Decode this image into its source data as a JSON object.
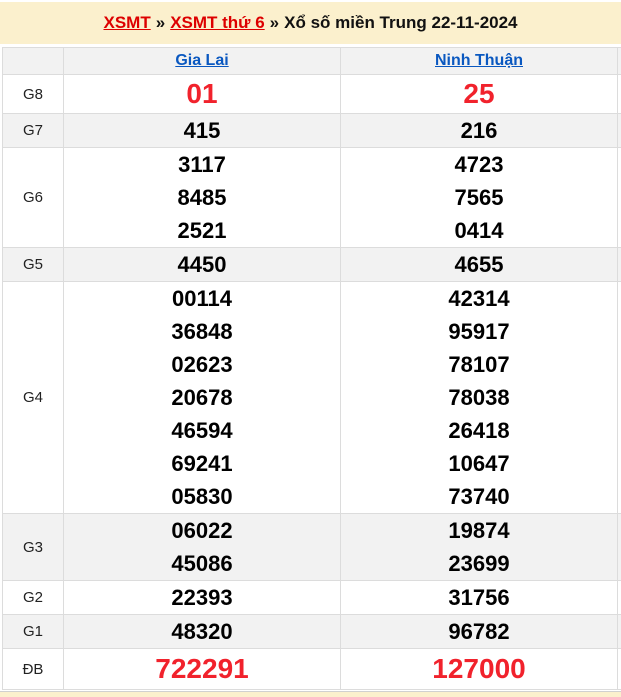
{
  "breadcrumb": {
    "link1": "XSMT",
    "sep": "»",
    "link2": "XSMT thứ 6",
    "current": "Xổ số miền Trung 22-11-2024"
  },
  "table": {
    "columns": [
      "Gia Lai",
      "Ninh Thuận"
    ],
    "rows": [
      {
        "label": "G8",
        "big": true,
        "gia_lai": [
          "01"
        ],
        "ninh_thuan": [
          "25"
        ]
      },
      {
        "label": "G7",
        "big": false,
        "gia_lai": [
          "415"
        ],
        "ninh_thuan": [
          "216"
        ]
      },
      {
        "label": "G6",
        "big": false,
        "gia_lai": [
          "3117",
          "8485",
          "2521"
        ],
        "ninh_thuan": [
          "4723",
          "7565",
          "0414"
        ]
      },
      {
        "label": "G5",
        "big": false,
        "gia_lai": [
          "4450"
        ],
        "ninh_thuan": [
          "4655"
        ]
      },
      {
        "label": "G4",
        "big": false,
        "gia_lai": [
          "00114",
          "36848",
          "02623",
          "20678",
          "46594",
          "69241",
          "05830"
        ],
        "ninh_thuan": [
          "42314",
          "95917",
          "78107",
          "78038",
          "26418",
          "10647",
          "73740"
        ]
      },
      {
        "label": "G3",
        "big": false,
        "gia_lai": [
          "06022",
          "45086"
        ],
        "ninh_thuan": [
          "19874",
          "23699"
        ]
      },
      {
        "label": "G2",
        "big": false,
        "gia_lai": [
          "22393"
        ],
        "ninh_thuan": [
          "31756"
        ]
      },
      {
        "label": "G1",
        "big": false,
        "gia_lai": [
          "48320"
        ],
        "ninh_thuan": [
          "96782"
        ]
      },
      {
        "label": "ĐB",
        "big": true,
        "gia_lai": [
          "722291"
        ],
        "ninh_thuan": [
          "127000"
        ]
      }
    ]
  },
  "colors": {
    "cream_band": "#fbf0cd",
    "row_stripe": "#f2f2f2",
    "table_border": "#dcdcdc",
    "link_blue": "#0a58c0",
    "link_red": "#dd0000",
    "number_red": "#f1222c",
    "number_black": "#000000"
  }
}
